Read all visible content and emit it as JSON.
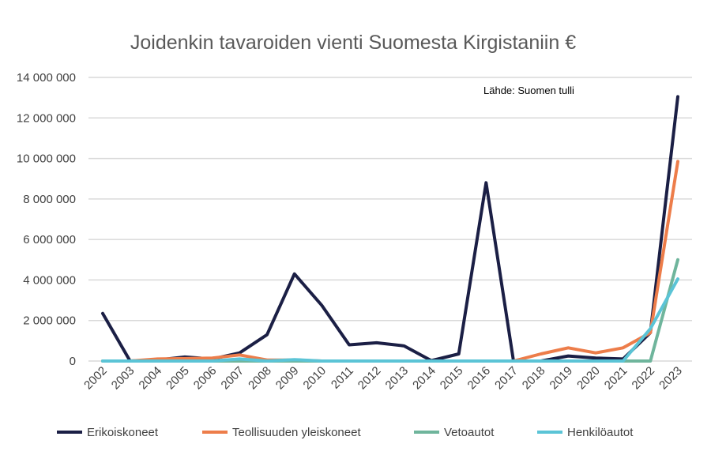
{
  "chart_data": {
    "type": "line",
    "title": "Joidenkin tavaroiden vienti Suomesta Kirgistaniin €",
    "annotation": "Lähde: Suomen tulli",
    "xlabel": "",
    "ylabel": "",
    "ylim": [
      0,
      14000000
    ],
    "yticks": [
      0,
      2000000,
      4000000,
      6000000,
      8000000,
      10000000,
      12000000,
      14000000
    ],
    "ytick_labels": [
      "0",
      "2 000 000",
      "4 000 000",
      "6 000 000",
      "8 000 000",
      "10 000 000",
      "12 000 000",
      "14 000 000"
    ],
    "grid": true,
    "legend_position": "bottom",
    "categories": [
      "2002",
      "2003",
      "2004",
      "2005",
      "2006",
      "2007",
      "2008",
      "2009",
      "2010",
      "2011",
      "2012",
      "2013",
      "2014",
      "2015",
      "2016",
      "2017",
      "2018",
      "2019",
      "2020",
      "2021",
      "2022",
      "2023"
    ],
    "series": [
      {
        "name": "Erikoiskoneet",
        "color": "#1b1f45",
        "values": [
          2350000,
          0,
          50000,
          200000,
          100000,
          400000,
          1300000,
          4300000,
          2750000,
          800000,
          900000,
          750000,
          20000,
          350000,
          8800000,
          0,
          0,
          250000,
          150000,
          100000,
          1400000,
          13050000
        ]
      },
      {
        "name": "Teollisuuden yleiskoneet",
        "color": "#ed7d4a",
        "values": [
          0,
          0,
          100000,
          120000,
          150000,
          300000,
          50000,
          50000,
          0,
          0,
          0,
          0,
          0,
          0,
          0,
          0,
          350000,
          650000,
          400000,
          650000,
          1400000,
          9850000
        ]
      },
      {
        "name": "Vetoautot",
        "color": "#6fb59c",
        "values": [
          0,
          0,
          0,
          0,
          0,
          0,
          0,
          0,
          0,
          0,
          0,
          0,
          0,
          0,
          0,
          0,
          0,
          0,
          0,
          0,
          0,
          5000000
        ]
      },
      {
        "name": "Henkilöautot",
        "color": "#5bc4d6",
        "values": [
          0,
          0,
          0,
          0,
          0,
          100000,
          0,
          70000,
          0,
          0,
          0,
          0,
          0,
          0,
          0,
          0,
          0,
          0,
          0,
          0,
          1600000,
          4050000
        ]
      }
    ]
  }
}
